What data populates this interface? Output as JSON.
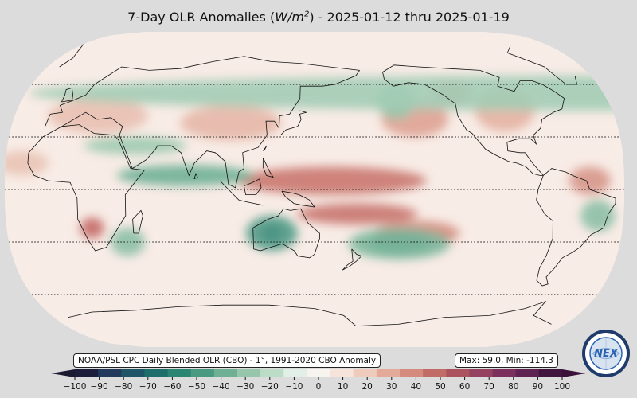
{
  "title": {
    "prefix": "7-Day OLR Anomalies (",
    "unit_main": "W/m",
    "unit_exp": "2",
    "suffix": ") - 2025-01-12 thru 2025-01-19"
  },
  "source_label": "NOAA/PSL CPC Daily Blended OLR (CBO) - 1°, 1991-2020 CBO Anomaly",
  "stats_label": "Max: 59.0,  Min: -114.3",
  "colorbar": {
    "ticks": [
      "−100",
      "−90",
      "−80",
      "−70",
      "−60",
      "−50",
      "−40",
      "−30",
      "−20",
      "−10",
      "0",
      "10",
      "20",
      "30",
      "40",
      "50",
      "60",
      "70",
      "80",
      "90",
      "100"
    ],
    "colors": [
      "#1c1d3a",
      "#23395b",
      "#1f5466",
      "#1e6f6c",
      "#2a8572",
      "#4a9a82",
      "#6fb095",
      "#97c6ac",
      "#bcdcc8",
      "#e2efe6",
      "#f7f3ef",
      "#f6e4db",
      "#eecbbd",
      "#e3aa9a",
      "#d48a7c",
      "#c26c68",
      "#ad535f",
      "#944260",
      "#7a2f5c",
      "#5e2253",
      "#40153f"
    ],
    "extend_low": "#1b1a30",
    "extend_high": "#3a1138"
  },
  "map": {
    "anomaly_blobs": [
      {
        "lon": 160,
        "lat": 5,
        "rx": 55,
        "ry": 8,
        "color": "#c9776f"
      },
      {
        "lon": 175,
        "lat": -14,
        "rx": 35,
        "ry": 6,
        "color": "#c8756e"
      },
      {
        "lon": -150,
        "lat": -25,
        "rx": 25,
        "ry": 7,
        "color": "#d38d7e"
      },
      {
        "lon": -150,
        "lat": 40,
        "rx": 20,
        "ry": 10,
        "color": "#dea293"
      },
      {
        "lon": -95,
        "lat": 45,
        "rx": 18,
        "ry": 12,
        "color": "#e4b3a3"
      },
      {
        "lon": 100,
        "lat": 38,
        "rx": 30,
        "ry": 10,
        "color": "#e6b8a8"
      },
      {
        "lon": 20,
        "lat": 42,
        "rx": 30,
        "ry": 10,
        "color": "#e8c0b1"
      },
      {
        "lon": -20,
        "lat": 15,
        "rx": 15,
        "ry": 7,
        "color": "#e9c4b5"
      },
      {
        "lon": 20,
        "lat": -22,
        "rx": 7,
        "ry": 6,
        "color": "#c46a67"
      },
      {
        "lon": -50,
        "lat": 5,
        "rx": 12,
        "ry": 8,
        "color": "#d6968a"
      },
      {
        "lon": -125,
        "lat": 55,
        "rx": 12,
        "ry": 8,
        "color": "#dca394"
      },
      {
        "lon": 125,
        "lat": -25,
        "rx": 6,
        "ry": 4,
        "color": "#1f3050"
      },
      {
        "lon": 125,
        "lat": -25,
        "rx": 15,
        "ry": 10,
        "color": "#4f9a86"
      },
      {
        "lon": -160,
        "lat": -31,
        "rx": 18,
        "ry": 5,
        "color": "#266f6c"
      },
      {
        "lon": -160,
        "lat": -31,
        "rx": 30,
        "ry": 9,
        "color": "#7cb79c"
      },
      {
        "lon": 75,
        "lat": 8,
        "rx": 40,
        "ry": 6,
        "color": "#6fb095"
      },
      {
        "lon": 45,
        "lat": 25,
        "rx": 30,
        "ry": 5,
        "color": "#9ccaaf"
      },
      {
        "lon": -160,
        "lat": 50,
        "rx": 12,
        "ry": 10,
        "color": "#97c6ac"
      },
      {
        "lon": -45,
        "lat": -15,
        "rx": 10,
        "ry": 9,
        "color": "#8cbfa6"
      },
      {
        "lon": 40,
        "lat": -30,
        "rx": 10,
        "ry": 8,
        "color": "#8cbfa6"
      },
      {
        "lon": -40,
        "lat": 55,
        "rx": 12,
        "ry": 10,
        "color": "#a3ccb5"
      }
    ]
  }
}
